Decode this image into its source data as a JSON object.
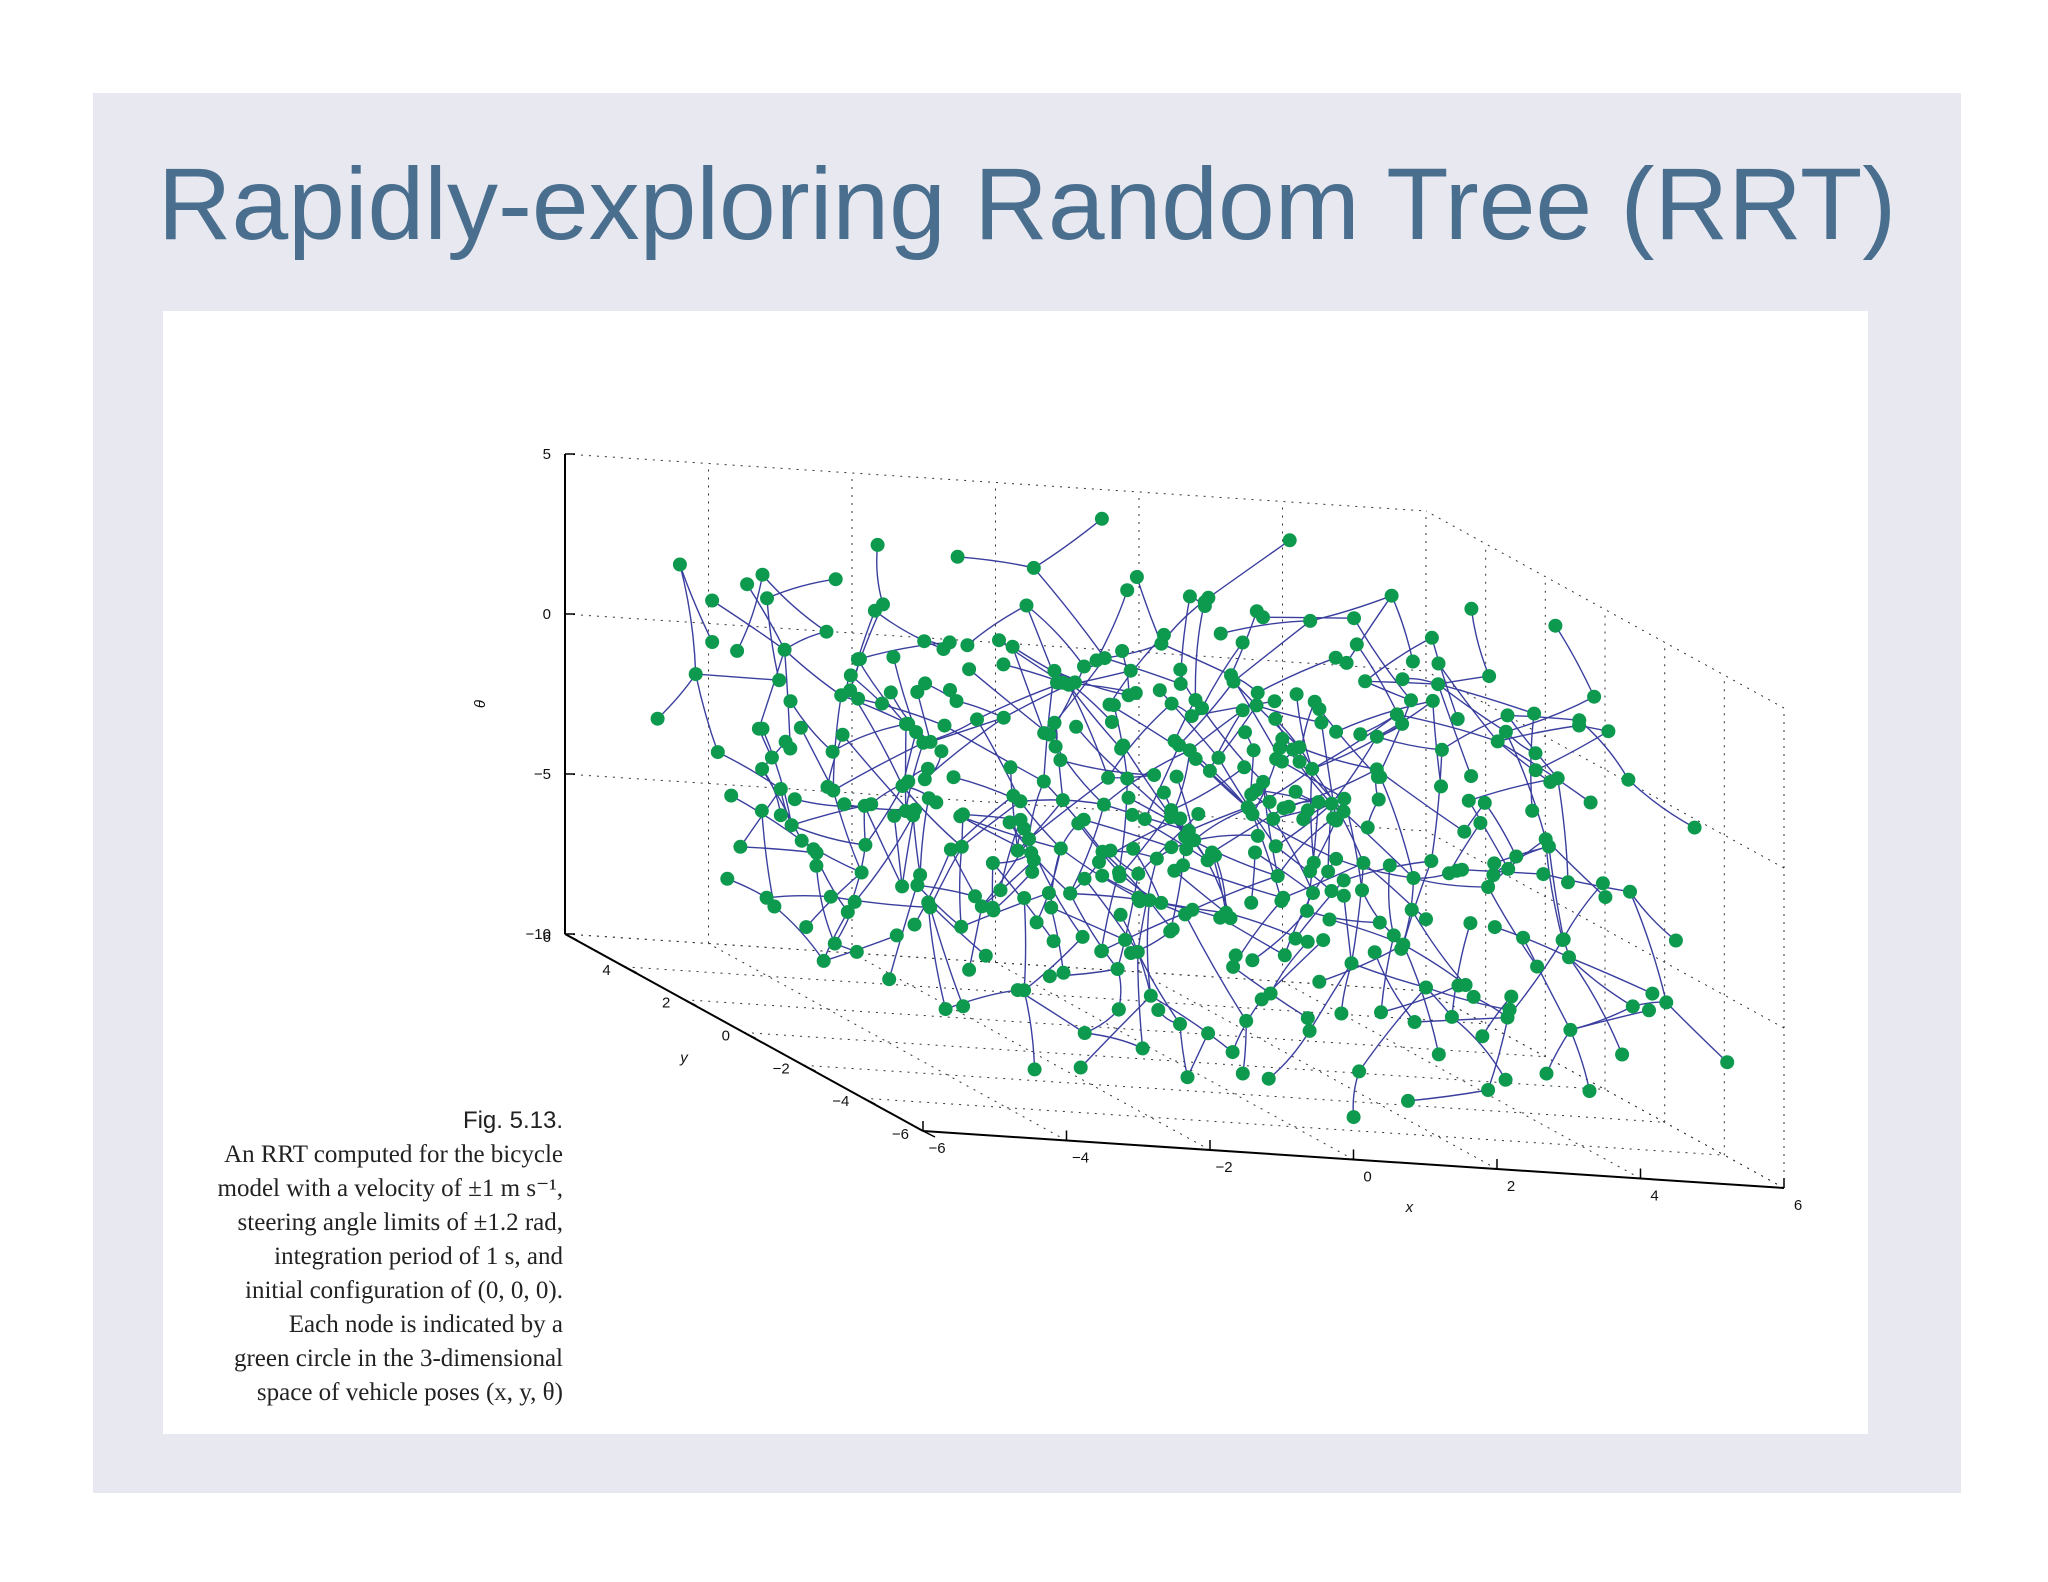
{
  "slide": {
    "title": "Rapidly-exploring Random Tree (RRT)",
    "background_color": "#e8e8f1",
    "title_color": "#4a6f8e"
  },
  "caption": {
    "figure_label": "Fig. 5.13.",
    "lines": [
      "An RRT computed for the bicycle",
      "model with a velocity of ±1 m s⁻¹,",
      "steering angle limits of ±1.2 rad,",
      "integration period of 1 s, and",
      "initial configuration of (0, 0, 0).",
      "Each node is indicated by a",
      "green circle in the 3-dimensional",
      "space of vehicle poses (x, y, θ)"
    ]
  },
  "chart_data": {
    "type": "scatter",
    "projection": "3d",
    "node_color": "#0d9a4e",
    "edge_color": "#3a3f9e",
    "xlabel": "x",
    "ylabel": "y",
    "zlabel": "θ",
    "xlim": [
      -6,
      6
    ],
    "ylim": [
      -6,
      6
    ],
    "zlim": [
      -10,
      5
    ],
    "x_ticks": [
      "−6",
      "−4",
      "−2",
      "0",
      "2",
      "4",
      "6"
    ],
    "y_ticks": [
      "−6",
      "−4",
      "−2",
      "0",
      "2",
      "4",
      "6"
    ],
    "z_ticks": [
      "−10",
      "−5",
      "0",
      "5"
    ],
    "grid": true,
    "node_count_estimate": 450
  }
}
